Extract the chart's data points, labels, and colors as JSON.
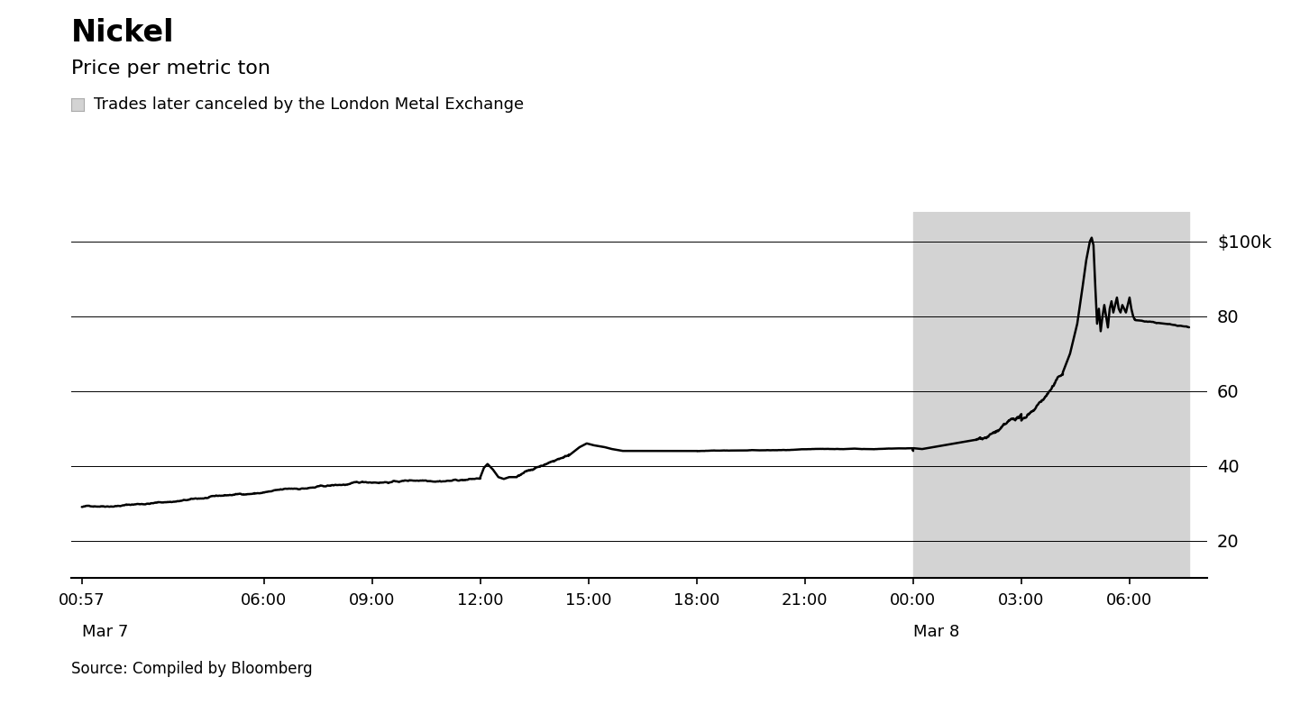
{
  "title": "Nickel",
  "subtitle": "Price per metric ton",
  "legend_label": "Trades later canceled by the London Metal Exchange",
  "source": "Source: Compiled by Bloomberg",
  "ytick_positions": [
    20,
    40,
    60,
    80,
    100
  ],
  "ytick_labels": [
    "20",
    "40",
    "60",
    "80",
    "$100k"
  ],
  "ylim": [
    10,
    108
  ],
  "xlim": [
    -0.3,
    31.2
  ],
  "background_color": "#ffffff",
  "shaded_color": "#d3d3d3",
  "line_color": "#000000",
  "x_tick_labels": [
    "00:57",
    "06:00",
    "09:00",
    "12:00",
    "15:00",
    "18:00",
    "21:00",
    "00:00",
    "03:00",
    "06:00"
  ],
  "x_tick_positions": [
    0,
    5.05,
    8.05,
    11.05,
    14.05,
    17.05,
    20.05,
    23.05,
    26.05,
    29.05
  ],
  "shaded_xstart": 23.05,
  "shaded_xend": 30.7,
  "mar7_x": 0,
  "mar8_x": 23.05
}
